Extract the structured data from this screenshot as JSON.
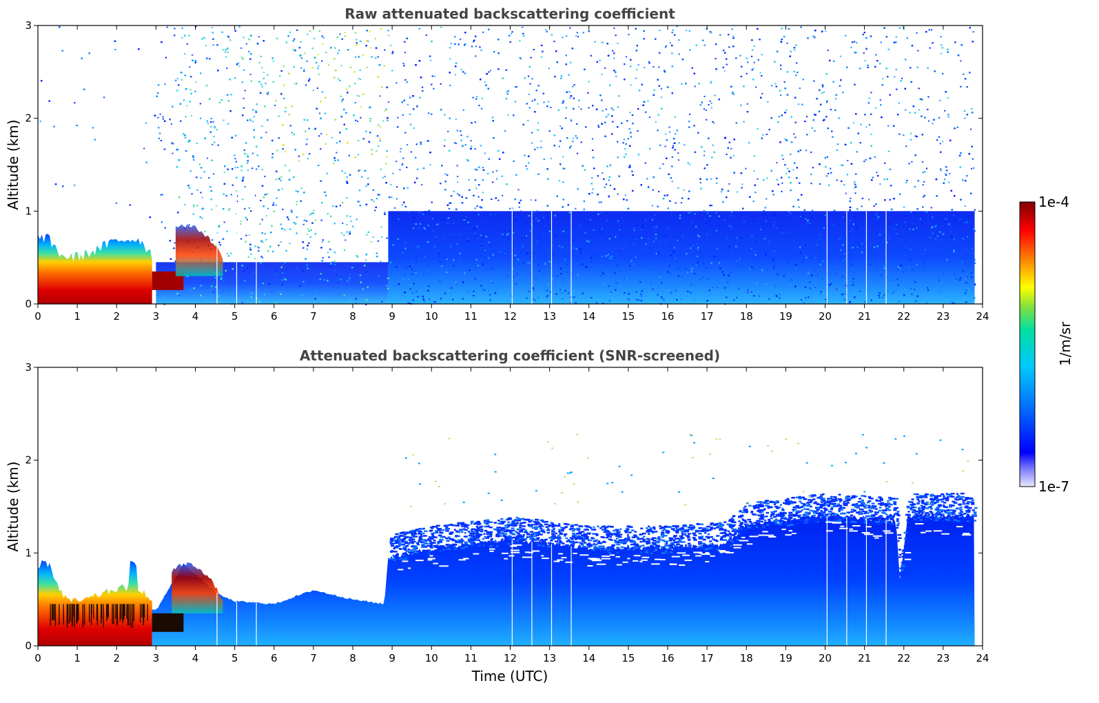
{
  "chart_data": [
    {
      "type": "heatmap",
      "title": "Raw attenuated backscattering coefficient",
      "xlabel": "",
      "ylabel": "Altitude (km)",
      "xlim": [
        0,
        24
      ],
      "ylim": [
        0,
        3
      ],
      "x_ticks": [
        "0",
        "1",
        "2",
        "3",
        "4",
        "5",
        "6",
        "7",
        "8",
        "9",
        "10",
        "11",
        "12",
        "13",
        "14",
        "15",
        "16",
        "17",
        "18",
        "19",
        "20",
        "21",
        "22",
        "23",
        "24"
      ],
      "y_ticks": [
        "0",
        "1",
        "2",
        "3"
      ],
      "grid": false,
      "features": [
        {
          "name": "aerosol layer",
          "t_start": 0,
          "t_end": 2.9,
          "top_km": 0.95,
          "level": "high"
        },
        {
          "name": "elevated layer",
          "t_start": 3.5,
          "t_end": 4.7,
          "top_km": 0.85,
          "level": "high"
        },
        {
          "name": "noisy upper background",
          "t_start": 3.0,
          "t_end": 8.9,
          "level": "medium"
        },
        {
          "name": "boundary layer",
          "t_start": 8.9,
          "t_end": 23.8,
          "top_km": 1.0,
          "level": "low-medium"
        }
      ],
      "gap_times": [
        4.55,
        5.05,
        5.55,
        12.05,
        12.55,
        13.05,
        13.55,
        20.05,
        20.55,
        21.05,
        21.55
      ]
    },
    {
      "type": "heatmap",
      "title": "Attenuated backscattering coefficient (SNR-screened)",
      "xlabel": "Time (UTC)",
      "ylabel": "Altitude (km)",
      "xlim": [
        0,
        24
      ],
      "ylim": [
        0,
        3
      ],
      "x_ticks": [
        "0",
        "1",
        "2",
        "3",
        "4",
        "5",
        "6",
        "7",
        "8",
        "9",
        "10",
        "11",
        "12",
        "13",
        "14",
        "15",
        "16",
        "17",
        "18",
        "19",
        "20",
        "21",
        "22",
        "23",
        "24"
      ],
      "y_ticks": [
        "0",
        "1",
        "2",
        "3"
      ],
      "grid": false,
      "layer_top_km": [
        [
          0,
          0.92
        ],
        [
          1,
          0.55
        ],
        [
          2,
          0.52
        ],
        [
          3,
          0.38
        ],
        [
          3.7,
          0.88
        ],
        [
          4.6,
          0.55
        ],
        [
          5,
          0.48
        ],
        [
          6,
          0.45
        ],
        [
          7,
          0.6
        ],
        [
          8,
          0.5
        ],
        [
          8.8,
          0.45
        ],
        [
          8.9,
          0.95
        ],
        [
          10,
          1.05
        ],
        [
          12,
          1.15
        ],
        [
          14,
          1.05
        ],
        [
          16,
          1.05
        ],
        [
          17.5,
          1.1
        ],
        [
          18,
          1.3
        ],
        [
          20,
          1.4
        ],
        [
          21.8,
          1.35
        ],
        [
          21.9,
          0.7
        ],
        [
          22.1,
          1.4
        ],
        [
          23.8,
          1.4
        ]
      ],
      "gap_times": [
        4.55,
        5.05,
        5.55,
        12.05,
        12.55,
        13.05,
        13.55,
        20.05,
        20.55,
        21.05,
        21.55
      ]
    }
  ],
  "colorbar": {
    "label": "1/m/sr",
    "max_label": "1e-4",
    "min_label": "1e-7",
    "scale": "log",
    "colormap": [
      "#e6e6fa",
      "#0000ff",
      "#00bfff",
      "#00e5c0",
      "#ffff00",
      "#ff8000",
      "#ff0000",
      "#800000"
    ]
  }
}
